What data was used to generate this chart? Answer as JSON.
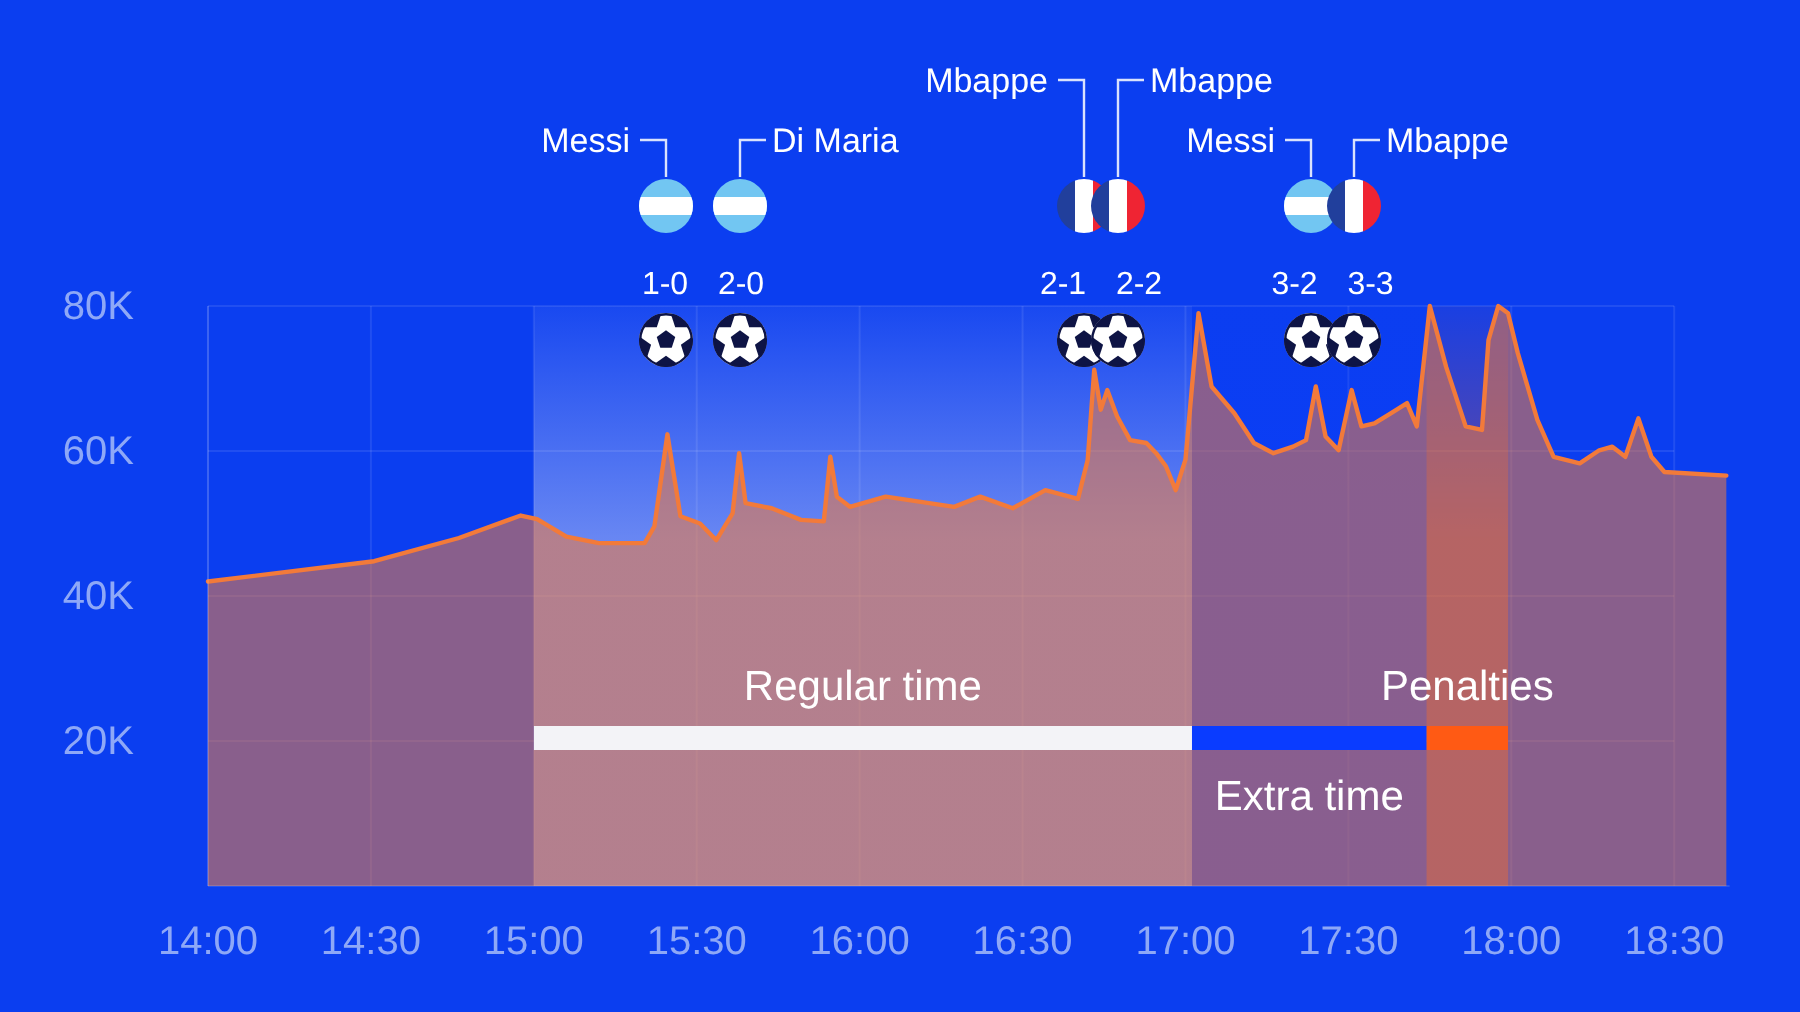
{
  "chart_data": {
    "type": "area",
    "color": "#f27a3a",
    "x": [
      14.0,
      14.51,
      14.77,
      14.96,
      15.01,
      15.1,
      15.2,
      15.34,
      15.37,
      15.41,
      15.45,
      15.51,
      15.56,
      15.61,
      15.63,
      15.65,
      15.73,
      15.82,
      15.89,
      15.91,
      15.93,
      15.97,
      16.08,
      16.29,
      16.37,
      16.47,
      16.57,
      16.67,
      16.7,
      16.72,
      16.74,
      16.76,
      16.79,
      16.83,
      16.88,
      16.91,
      16.94,
      16.97,
      17.0,
      17.04,
      17.08,
      17.15,
      17.21,
      17.27,
      17.33,
      17.37,
      17.4,
      17.43,
      17.47,
      17.51,
      17.54,
      17.58,
      17.63,
      17.68,
      17.71,
      17.75,
      17.8,
      17.86,
      17.91,
      17.93,
      17.96,
      17.99,
      18.02,
      18.08,
      18.13,
      18.21,
      18.27,
      18.31,
      18.35,
      18.39,
      18.43,
      18.47,
      18.66
    ],
    "values": [
      42000,
      44800,
      48000,
      51100,
      50600,
      48200,
      47300,
      47300,
      49600,
      62300,
      51000,
      50000,
      47700,
      51400,
      59700,
      52800,
      52100,
      50500,
      50300,
      59200,
      53700,
      52300,
      53700,
      52300,
      53700,
      52100,
      54600,
      53400,
      58800,
      71200,
      65700,
      68400,
      64800,
      61500,
      61100,
      59700,
      57900,
      54600,
      58800,
      79000,
      68900,
      65200,
      61100,
      59700,
      60600,
      61500,
      68900,
      62000,
      60100,
      68400,
      63400,
      63800,
      65200,
      66600,
      63400,
      80000,
      71600,
      63400,
      62900,
      75300,
      80000,
      79000,
      73500,
      64300,
      59200,
      58300,
      60100,
      60600,
      59200,
      64500,
      59200,
      57100,
      56600
    ],
    "xlim": [
      14,
      18.67
    ],
    "xticks": [
      {
        "value": 14,
        "label": "14:00"
      },
      {
        "value": 14.5,
        "label": "14:30"
      },
      {
        "value": 15,
        "label": "15:00"
      },
      {
        "value": 15.5,
        "label": "15:30"
      },
      {
        "value": 16,
        "label": "16:00"
      },
      {
        "value": 16.5,
        "label": "16:30"
      },
      {
        "value": 17,
        "label": "17:00"
      },
      {
        "value": 17.5,
        "label": "17:30"
      },
      {
        "value": 18,
        "label": "18:00"
      },
      {
        "value": 18.5,
        "label": "18:30"
      }
    ],
    "ylim": [
      0,
      80000
    ],
    "yticks": [
      {
        "value": 20000,
        "label": "20K"
      },
      {
        "value": 40000,
        "label": "40K"
      },
      {
        "value": 60000,
        "label": "60K"
      },
      {
        "value": 80000,
        "label": "80K"
      }
    ],
    "grid": true,
    "bands": [
      {
        "axis": "x",
        "from": 15,
        "to": 17.02,
        "label": "Regular time",
        "color": "#f3f3f7"
      },
      {
        "axis": "x",
        "from": 17.02,
        "to": 17.74,
        "label": "Extra time",
        "color": "#0a3cff"
      },
      {
        "axis": "x",
        "from": 17.74,
        "to": 17.99,
        "label": "Penalties",
        "color": "#ff5a14"
      }
    ],
    "annotations": [
      "1-0",
      "Messi",
      "2-0",
      "Di Maria",
      "2-1",
      "Mbappe",
      "2-2",
      "Mbappe",
      "3-2",
      "Messi",
      "3-3",
      "Mbappe"
    ]
  }
}
